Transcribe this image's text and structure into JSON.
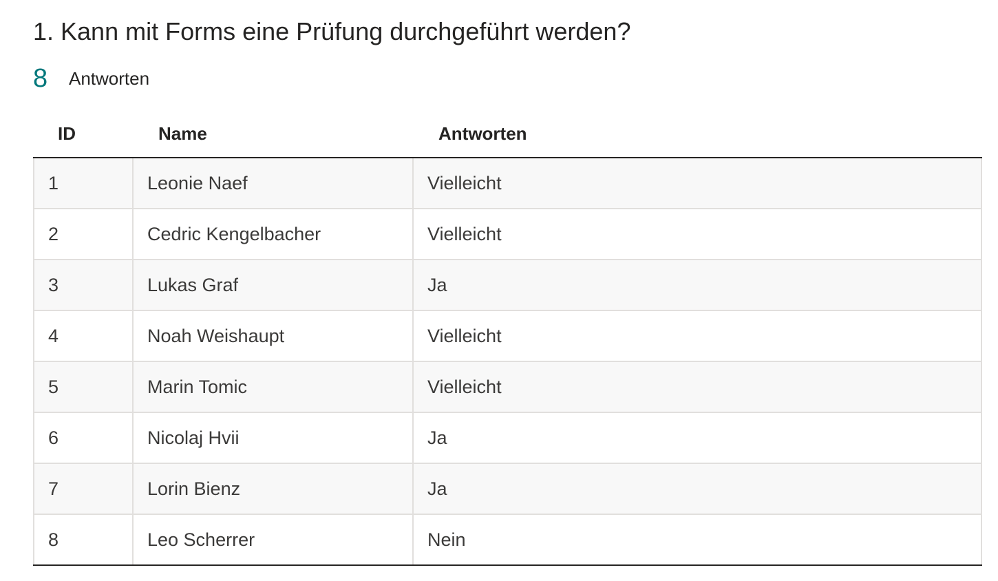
{
  "question": {
    "title": "1. Kann mit Forms eine Prüfung durchgeführt werden?",
    "response_count": "8",
    "response_label": "Antworten"
  },
  "table": {
    "headers": {
      "id": "ID",
      "name": "Name",
      "answer": "Antworten"
    },
    "rows": [
      {
        "id": "1",
        "name": "Leonie Naef",
        "answer": "Vielleicht"
      },
      {
        "id": "2",
        "name": "Cedric Kengelbacher",
        "answer": "Vielleicht"
      },
      {
        "id": "3",
        "name": "Lukas Graf",
        "answer": "Ja"
      },
      {
        "id": "4",
        "name": "Noah Weishaupt",
        "answer": "Vielleicht"
      },
      {
        "id": "5",
        "name": "Marin Tomic",
        "answer": "Vielleicht"
      },
      {
        "id": "6",
        "name": "Nicolaj Hvii",
        "answer": "Ja"
      },
      {
        "id": "7",
        "name": "Lorin Bienz",
        "answer": "Ja"
      },
      {
        "id": "8",
        "name": "Leo Scherrer",
        "answer": "Nein"
      }
    ]
  },
  "colors": {
    "accent": "#03787c",
    "text": "#252423",
    "row_alt": "#f8f8f8",
    "border": "#e1dfdd"
  }
}
